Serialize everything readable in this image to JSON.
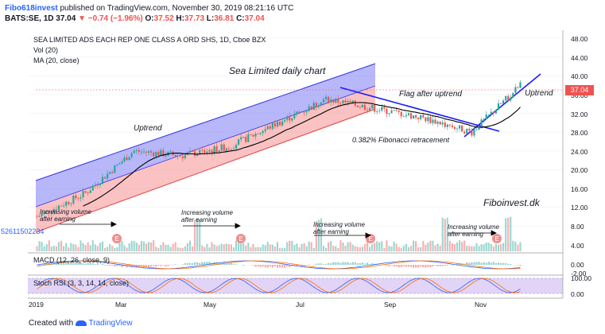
{
  "header": {
    "author": "Fibo618invest",
    "published": "published on TradingView.com, November 30, 2019 08:21:16 UTC",
    "symbol_line": "BATS:SE, 1D",
    "last": "37.04",
    "change_arrow": "▼",
    "change": "−0.74 (−1.96%)",
    "o_label": "O:",
    "o": "37.52",
    "h_label": "H:",
    "h": "37.73",
    "l_label": "L:",
    "l": "36.81",
    "c_label": "C:",
    "c": "37.04"
  },
  "legend": {
    "instrument": "SEA LIMITED ADS EACH REP ONE CLASS A ORD SHS, 1D, Cboe BZX",
    "vol": "Vol (20)",
    "ma": "MA (20, close)"
  },
  "annotations": {
    "title": "Sea Limited daily chart",
    "uptrend_left": "Uptrend",
    "flag": "Flag after uptrend",
    "uptrend_right": "Uptrend",
    "fib": "0.382% Fibonacci retracement",
    "brand": "Fiboinvest.dk",
    "vol1": "Increasing volume\nafter earning",
    "vol2": "Increasing volume\nafter earning",
    "vol3": "Increasing volume\nafter earning",
    "vol4": "Increasing volume\nafter earning",
    "side_number": "52611502234"
  },
  "price_axis": {
    "ticks": [
      "48.00",
      "44.00",
      "40.00",
      "36.00",
      "32.00",
      "28.00",
      "24.00",
      "20.00",
      "16.00",
      "12.00",
      "8.00",
      "4.00"
    ],
    "last_price_tag": "37.04"
  },
  "macd": {
    "label": "MACD (12, 26, close, 9)",
    "ticks": [
      "0.00",
      "-2.00"
    ]
  },
  "stoch": {
    "label": "Stoch RSI (3, 3, 14, 14, close)",
    "ticks": [
      "100.00",
      "0.00"
    ]
  },
  "time_axis": {
    "ticks": [
      "2019",
      "Mar",
      "May",
      "Jul",
      "Sep",
      "Nov"
    ]
  },
  "footer": {
    "created": "Created with",
    "tv": "TradingView"
  },
  "earnings_marker": "E",
  "colors": {
    "up": "#26a69a",
    "down": "#ef5350",
    "channel_upper": "#5b5bf0",
    "channel_lower": "#f07070",
    "trendline": "#1a1aff",
    "ma": "#000000",
    "stoch_band": "#d8c8f0"
  },
  "chart_data": {
    "type": "candlestick",
    "price_axis_range": [
      2,
      50
    ],
    "ma_period": 20,
    "approx_close_path": [
      {
        "t": "2019-01",
        "close": 10
      },
      {
        "t": "2019-02",
        "close": 15
      },
      {
        "t": "2019-03",
        "close": 24
      },
      {
        "t": "2019-04",
        "close": 23
      },
      {
        "t": "2019-05",
        "close": 25
      },
      {
        "t": "2019-06",
        "close": 30
      },
      {
        "t": "2019-07",
        "close": 35
      },
      {
        "t": "2019-08",
        "close": 33
      },
      {
        "t": "2019-09",
        "close": 31
      },
      {
        "t": "2019-10",
        "close": 28
      },
      {
        "t": "2019-11",
        "close": 38
      }
    ]
  }
}
